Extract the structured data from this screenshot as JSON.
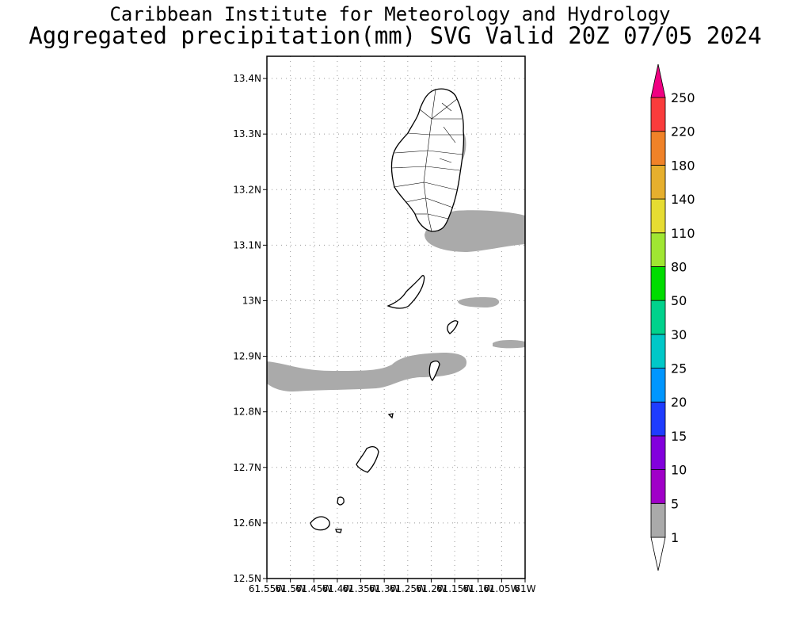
{
  "title": {
    "line1": "Caribbean Institute for Meteorology and Hydrology",
    "line2": "Aggregated precipitation(mm) SVG Valid 20Z 07/05 2024"
  },
  "map": {
    "lat_range": [
      12.5,
      13.44
    ],
    "lon_range": [
      -61.55,
      -61.0
    ],
    "lat_ticks": [
      {
        "value": 13.4,
        "label": "13.4N"
      },
      {
        "value": 13.3,
        "label": "13.3N"
      },
      {
        "value": 13.2,
        "label": "13.2N"
      },
      {
        "value": 13.1,
        "label": "13.1N"
      },
      {
        "value": 13.0,
        "label": "13N"
      },
      {
        "value": 12.9,
        "label": "12.9N"
      },
      {
        "value": 12.8,
        "label": "12.8N"
      },
      {
        "value": 12.7,
        "label": "12.7N"
      },
      {
        "value": 12.6,
        "label": "12.6N"
      },
      {
        "value": 12.5,
        "label": "12.5N"
      }
    ],
    "lon_ticks": [
      {
        "value": -61.55,
        "label": "61.55W"
      },
      {
        "value": -61.5,
        "label": "61.5W"
      },
      {
        "value": -61.45,
        "label": "61.45W"
      },
      {
        "value": -61.4,
        "label": "61.4W"
      },
      {
        "value": -61.35,
        "label": "61.35W"
      },
      {
        "value": -61.3,
        "label": "61.3W"
      },
      {
        "value": -61.25,
        "label": "61.25W"
      },
      {
        "value": -61.2,
        "label": "61.2W"
      },
      {
        "value": -61.15,
        "label": "61.15W"
      },
      {
        "value": -61.1,
        "label": "61.1W"
      },
      {
        "value": -61.05,
        "label": "61.05W"
      },
      {
        "value": -61.0,
        "label": "61W"
      }
    ],
    "grid": true,
    "precip_color": "#aaaaaa"
  },
  "colorbar": {
    "labels": [
      "1",
      "5",
      "10",
      "15",
      "20",
      "25",
      "30",
      "50",
      "80",
      "110",
      "140",
      "180",
      "220",
      "250"
    ],
    "colors": [
      "#aaaaaa",
      "#a000c8",
      "#8200dc",
      "#1e3cff",
      "#0096ff",
      "#00c8c8",
      "#00d28c",
      "#00dc00",
      "#a0e632",
      "#e6dc32",
      "#e6af2d",
      "#f08228",
      "#fa3c3c",
      "#f00082"
    ]
  }
}
